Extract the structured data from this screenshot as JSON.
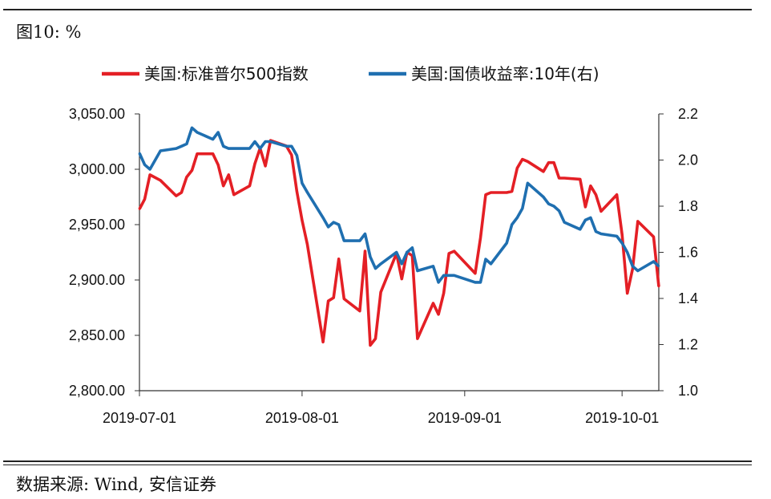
{
  "header": {
    "figure_title": "图10:  %"
  },
  "footer": {
    "source": "数据来源: Wind, 安信证券"
  },
  "chart_data": {
    "type": "line",
    "x": [
      "2019-07-01",
      "2019-07-02",
      "2019-07-03",
      "2019-07-05",
      "2019-07-08",
      "2019-07-09",
      "2019-07-10",
      "2019-07-11",
      "2019-07-12",
      "2019-07-15",
      "2019-07-16",
      "2019-07-17",
      "2019-07-18",
      "2019-07-19",
      "2019-07-22",
      "2019-07-23",
      "2019-07-24",
      "2019-07-25",
      "2019-07-26",
      "2019-07-29",
      "2019-07-30",
      "2019-07-31",
      "2019-08-01",
      "2019-08-02",
      "2019-08-05",
      "2019-08-06",
      "2019-08-07",
      "2019-08-08",
      "2019-08-09",
      "2019-08-12",
      "2019-08-13",
      "2019-08-14",
      "2019-08-15",
      "2019-08-16",
      "2019-08-19",
      "2019-08-20",
      "2019-08-21",
      "2019-08-22",
      "2019-08-23",
      "2019-08-26",
      "2019-08-27",
      "2019-08-28",
      "2019-08-29",
      "2019-08-30",
      "2019-09-03",
      "2019-09-04",
      "2019-09-05",
      "2019-09-06",
      "2019-09-09",
      "2019-09-10",
      "2019-09-11",
      "2019-09-12",
      "2019-09-13",
      "2019-09-16",
      "2019-09-17",
      "2019-09-18",
      "2019-09-19",
      "2019-09-20",
      "2019-09-23",
      "2019-09-24",
      "2019-09-25",
      "2019-09-26",
      "2019-09-27",
      "2019-09-30",
      "2019-10-01",
      "2019-10-02",
      "2019-10-03",
      "2019-10-04",
      "2019-10-07",
      "2019-10-08"
    ],
    "series": [
      {
        "name": "美国:标准普尔500指数",
        "axis": "left",
        "color": "#e41f25",
        "values": [
          2964,
          2973,
          2995,
          2990,
          2976,
          2979,
          2993,
          2999,
          3014,
          3014,
          3004,
          2985,
          2995,
          2977,
          2985,
          3005,
          3019,
          3003,
          3026,
          3021,
          3013,
          2980,
          2954,
          2932,
          2844,
          2881,
          2884,
          2919,
          2883,
          2872,
          2926,
          2841,
          2847,
          2889,
          2924,
          2901,
          2925,
          2922,
          2847,
          2879,
          2869,
          2888,
          2924,
          2926,
          2906,
          2938,
          2977,
          2979,
          2979,
          2980,
          3001,
          3009,
          3007,
          2998,
          3006,
          3006,
          2992,
          2992,
          2991,
          2966,
          2985,
          2977,
          2962,
          2977,
          2941,
          2888,
          2910,
          2953,
          2939,
          2894
        ]
      },
      {
        "name": "美国:国债收益率:10年(右)",
        "axis": "right",
        "color": "#1f6fb0",
        "values": [
          2.03,
          1.98,
          1.96,
          2.04,
          2.05,
          2.06,
          2.07,
          2.14,
          2.12,
          2.09,
          2.12,
          2.06,
          2.05,
          2.05,
          2.05,
          2.08,
          2.05,
          2.08,
          2.08,
          2.06,
          2.06,
          2.02,
          1.9,
          1.86,
          1.75,
          1.71,
          1.73,
          1.72,
          1.65,
          1.65,
          1.68,
          1.58,
          1.53,
          1.55,
          1.6,
          1.55,
          1.6,
          1.62,
          1.52,
          1.54,
          1.47,
          1.5,
          1.5,
          1.5,
          1.47,
          1.47,
          1.57,
          1.55,
          1.64,
          1.72,
          1.75,
          1.79,
          1.9,
          1.84,
          1.81,
          1.8,
          1.78,
          1.73,
          1.7,
          1.74,
          1.75,
          1.69,
          1.68,
          1.67,
          1.64,
          1.6,
          1.54,
          1.52,
          1.56,
          1.54
        ]
      }
    ],
    "xticks": [
      "2019-07-01",
      "2019-08-01",
      "2019-09-01",
      "2019-10-01"
    ],
    "left_axis": {
      "ylim": [
        2800,
        3050
      ],
      "ticks": [
        "3,050.00",
        "3,000.00",
        "2,950.00",
        "2,900.00",
        "2,850.00",
        "2,800.00"
      ]
    },
    "right_axis": {
      "ylim": [
        1.0,
        2.2
      ],
      "ticks": [
        "2.2",
        "2.0",
        "1.8",
        "1.6",
        "1.4",
        "1.2",
        "1.0"
      ]
    },
    "legend_position": "top",
    "grid": false
  }
}
